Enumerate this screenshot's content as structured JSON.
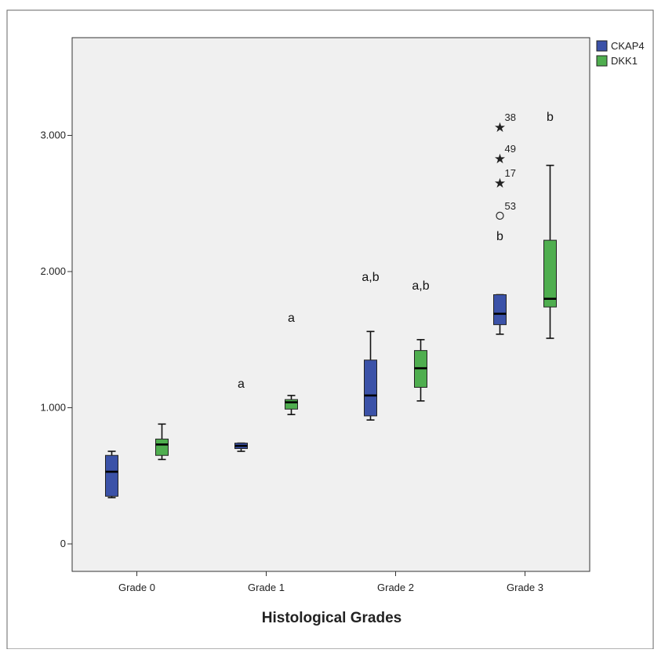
{
  "chart_data": {
    "type": "boxplot",
    "xlabel": "Histological Grades",
    "ylabel": "",
    "ylim": [
      -0.2,
      3.7
    ],
    "yticks": [
      {
        "value": 0,
        "label": "0"
      },
      {
        "value": 1,
        "label": "1.000"
      },
      {
        "value": 2,
        "label": "2.000"
      },
      {
        "value": 3,
        "label": "3.000"
      }
    ],
    "categories": [
      "Grade 0",
      "Grade 1",
      "Grade 2",
      "Grade 3"
    ],
    "legend": {
      "position": "top-right outside"
    },
    "grid": false,
    "series": [
      {
        "name": "CKAP4",
        "color": "#3b52a8",
        "boxes": [
          {
            "min": 0.34,
            "q1": 0.35,
            "median": 0.53,
            "q3": 0.65,
            "max": 0.68
          },
          {
            "min": 0.68,
            "q1": 0.7,
            "median": 0.72,
            "q3": 0.74,
            "max": 0.74
          },
          {
            "min": 0.91,
            "q1": 0.94,
            "median": 1.09,
            "q3": 1.35,
            "max": 1.56
          },
          {
            "min": 1.54,
            "q1": 1.61,
            "median": 1.69,
            "q3": 1.83,
            "max": 1.83
          }
        ],
        "annotations": [
          "",
          "a",
          "a,b",
          "b"
        ]
      },
      {
        "name": "DKK1",
        "color": "#4fae4f",
        "boxes": [
          {
            "min": 0.62,
            "q1": 0.65,
            "median": 0.73,
            "q3": 0.77,
            "max": 0.88
          },
          {
            "min": 0.95,
            "q1": 0.99,
            "median": 1.04,
            "q3": 1.06,
            "max": 1.09
          },
          {
            "min": 1.05,
            "q1": 1.15,
            "median": 1.29,
            "q3": 1.42,
            "max": 1.5
          },
          {
            "min": 1.51,
            "q1": 1.74,
            "median": 1.8,
            "q3": 2.23,
            "max": 2.78
          }
        ],
        "annotations": [
          "",
          "a",
          "a,b",
          "b"
        ]
      }
    ],
    "outliers": [
      {
        "series": "CKAP4",
        "category": "Grade 3",
        "value": 3.06,
        "marker": "star",
        "label": "38"
      },
      {
        "series": "CKAP4",
        "category": "Grade 3",
        "value": 2.83,
        "marker": "star",
        "label": "49"
      },
      {
        "series": "CKAP4",
        "category": "Grade 3",
        "value": 2.65,
        "marker": "star",
        "label": "17"
      },
      {
        "series": "CKAP4",
        "category": "Grade 3",
        "value": 2.41,
        "marker": "circle",
        "label": "53"
      }
    ]
  }
}
